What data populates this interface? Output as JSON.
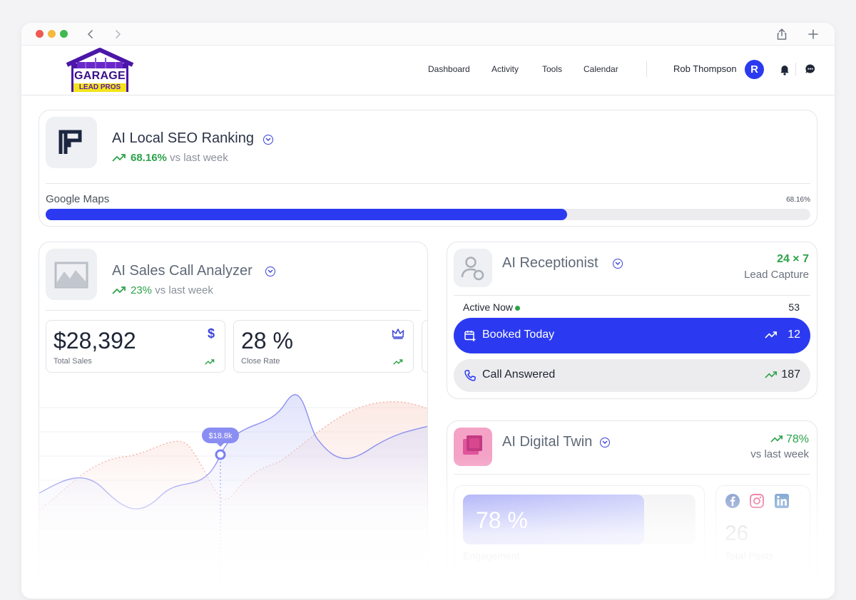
{
  "browser": {
    "back_icon": "chevron-left-icon",
    "forward_icon": "chevron-right-icon",
    "share_icon": "share-icon",
    "new_tab_icon": "plus-icon"
  },
  "logo": {
    "line1": "GARAGE",
    "line2": "LEAD PROS"
  },
  "nav": {
    "items": [
      "Dashboard",
      "Activity",
      "Tools",
      "Calendar"
    ]
  },
  "user": {
    "name": "Rob Thompson",
    "initial": "R"
  },
  "seo": {
    "title": "AI Local SEO Ranking",
    "trend_value": "68.16%",
    "trend_label": "vs last week",
    "progress_label": "Google Maps",
    "progress_value_text": "68.16%",
    "progress_fraction": 0.6816
  },
  "sales": {
    "title": "AI Sales Call Analyzer",
    "trend_value": "23%",
    "trend_label": "vs last week",
    "stats": [
      {
        "value": "$28,392",
        "label": "Total Sales",
        "icon": "dollar-icon"
      },
      {
        "value": "28 %",
        "label": "Close Rate",
        "icon": "crown-icon"
      }
    ],
    "tooltip": "$18.8k"
  },
  "receptionist": {
    "title": "AI Receptionist",
    "badge_value": "24 × 7",
    "badge_label": "Lead Capture",
    "active_label": "Active Now",
    "active_count": "53",
    "booked_label": "Booked Today",
    "booked_count": "12",
    "answered_label": "Call Answered",
    "answered_count": "187"
  },
  "twin": {
    "title": "AI Digital Twin",
    "trend_value": "78%",
    "trend_label": "vs last week",
    "engagement_value": "78 %",
    "engagement_label": "Engagement",
    "engagement_fraction": 0.78,
    "posts_value": "26",
    "posts_label": "Total Posts"
  },
  "colors": {
    "accent": "#2b3af0",
    "success": "#2ca24a",
    "twin_pink": "#f06aa8"
  }
}
